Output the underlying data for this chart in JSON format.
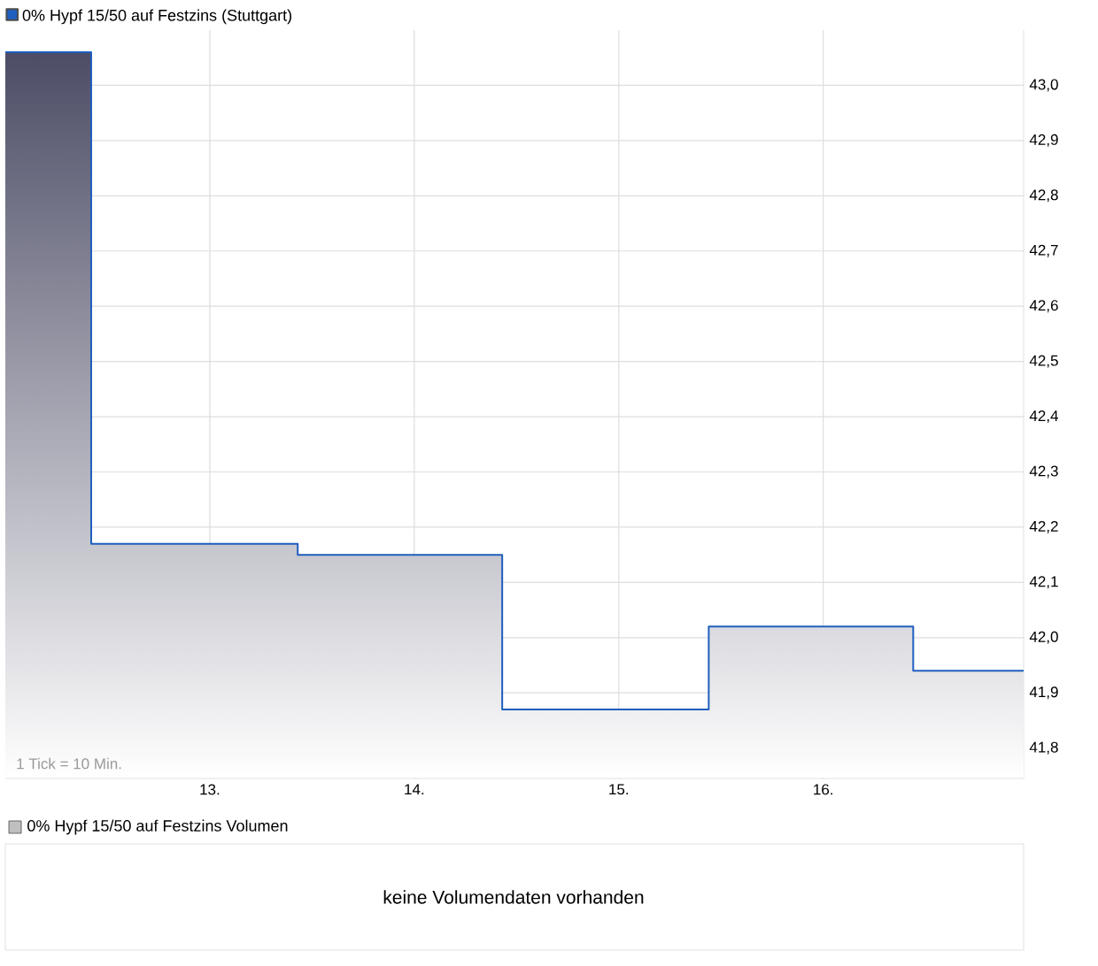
{
  "chart_data": [
    {
      "type": "step",
      "legend": "top left",
      "grid": true,
      "x": [
        12,
        12.42,
        13.43,
        14.43,
        15.44,
        16.44,
        16.98
      ],
      "series": [
        {
          "name": "0% Hypf 15/50 auf Festzins (Stuttgart)",
          "color": "#1f5fbf",
          "values": [
            43.06,
            42.17,
            42.15,
            41.87,
            42.02,
            41.94,
            41.94
          ]
        }
      ],
      "xlim": [
        12,
        16.98
      ],
      "ylim": [
        41.745,
        43.1
      ],
      "xticks": [
        {
          "value": 13,
          "label": "13."
        },
        {
          "value": 14,
          "label": "14."
        },
        {
          "value": 15,
          "label": "15."
        },
        {
          "value": 16,
          "label": "16."
        }
      ],
      "yticks": [
        {
          "value": 41.8,
          "label": "41,8"
        },
        {
          "value": 41.9,
          "label": "41,9"
        },
        {
          "value": 42.0,
          "label": "42,0"
        },
        {
          "value": 42.1,
          "label": "42,1"
        },
        {
          "value": 42.2,
          "label": "42,2"
        },
        {
          "value": 42.3,
          "label": "42,3"
        },
        {
          "value": 42.4,
          "label": "42,4"
        },
        {
          "value": 42.5,
          "label": "42,5"
        },
        {
          "value": 42.6,
          "label": "42,6"
        },
        {
          "value": 42.7,
          "label": "42,7"
        },
        {
          "value": 42.8,
          "label": "42,8"
        },
        {
          "value": 42.9,
          "label": "42,9"
        },
        {
          "value": 43.0,
          "label": "43,0"
        }
      ],
      "annotations": [
        "1 Tick = 10 Min."
      ]
    },
    {
      "type": "other",
      "title": "0% Hypf 15/50 auf Festzins Volumen",
      "annotations": [
        "keine Volumendaten vorhanden"
      ]
    }
  ]
}
